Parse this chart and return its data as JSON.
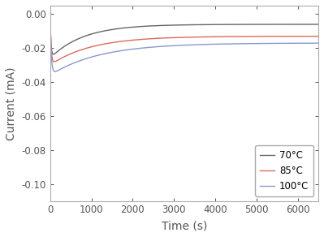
{
  "title": "",
  "xlabel": "Time (s)",
  "ylabel": "Current (mA)",
  "xlim": [
    0,
    6500
  ],
  "ylim": [
    -0.11,
    0.005
  ],
  "yticks": [
    0.0,
    -0.02,
    -0.04,
    -0.06,
    -0.08,
    -0.1
  ],
  "xticks": [
    0,
    1000,
    2000,
    3000,
    4000,
    5000,
    6000
  ],
  "curves": [
    {
      "label": "70°C",
      "color": "#666666",
      "start_val": -0.001,
      "dip_val": -0.026,
      "final_val": -0.006,
      "dip_t": 60,
      "tau_rise": 800
    },
    {
      "label": "85°C",
      "color": "#d96b5e",
      "start_val": -0.002,
      "dip_val": -0.03,
      "final_val": -0.013,
      "dip_t": 70,
      "tau_rise": 1000
    },
    {
      "label": "100°C",
      "color": "#8899cc",
      "start_val": -0.003,
      "dip_val": -0.036,
      "final_val": -0.017,
      "dip_t": 80,
      "tau_rise": 1200
    }
  ],
  "background_color": "#ffffff",
  "spine_color": "#aaaaaa",
  "tick_color": "#555555",
  "label_fontsize": 10,
  "tick_fontsize": 8.5,
  "legend_fontsize": 8.5,
  "linewidth": 1.0
}
